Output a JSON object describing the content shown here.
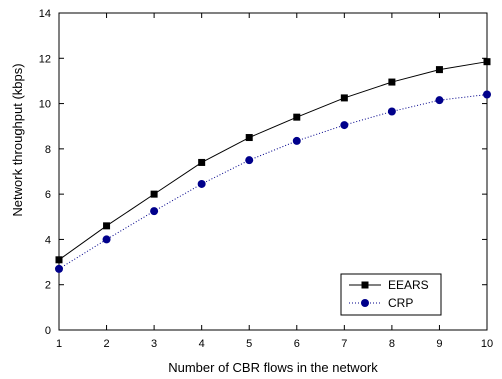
{
  "chart_data": {
    "type": "line",
    "title": "",
    "xlabel": "Number of CBR flows in the network",
    "ylabel": "Network throughput (kbps)",
    "xlim": [
      1,
      10
    ],
    "ylim": [
      0,
      14
    ],
    "xticks": [
      1,
      2,
      3,
      4,
      5,
      6,
      7,
      8,
      9,
      10
    ],
    "yticks": [
      0,
      2,
      4,
      6,
      8,
      10,
      12,
      14
    ],
    "grid": false,
    "legend_position": "bottom-right",
    "x": [
      1,
      2,
      3,
      4,
      5,
      6,
      7,
      8,
      9,
      10
    ],
    "series": [
      {
        "name": "EEARS",
        "values": [
          3.1,
          4.6,
          6.0,
          7.4,
          8.5,
          9.4,
          10.25,
          10.95,
          11.5,
          11.85
        ],
        "color": "#000000",
        "marker": "square",
        "line_style": "solid"
      },
      {
        "name": "CRP",
        "values": [
          2.7,
          4.0,
          5.25,
          6.45,
          7.5,
          8.35,
          9.05,
          9.65,
          10.15,
          10.4
        ],
        "color": "#00008B",
        "marker": "circle",
        "line_style": "dotted"
      }
    ]
  }
}
